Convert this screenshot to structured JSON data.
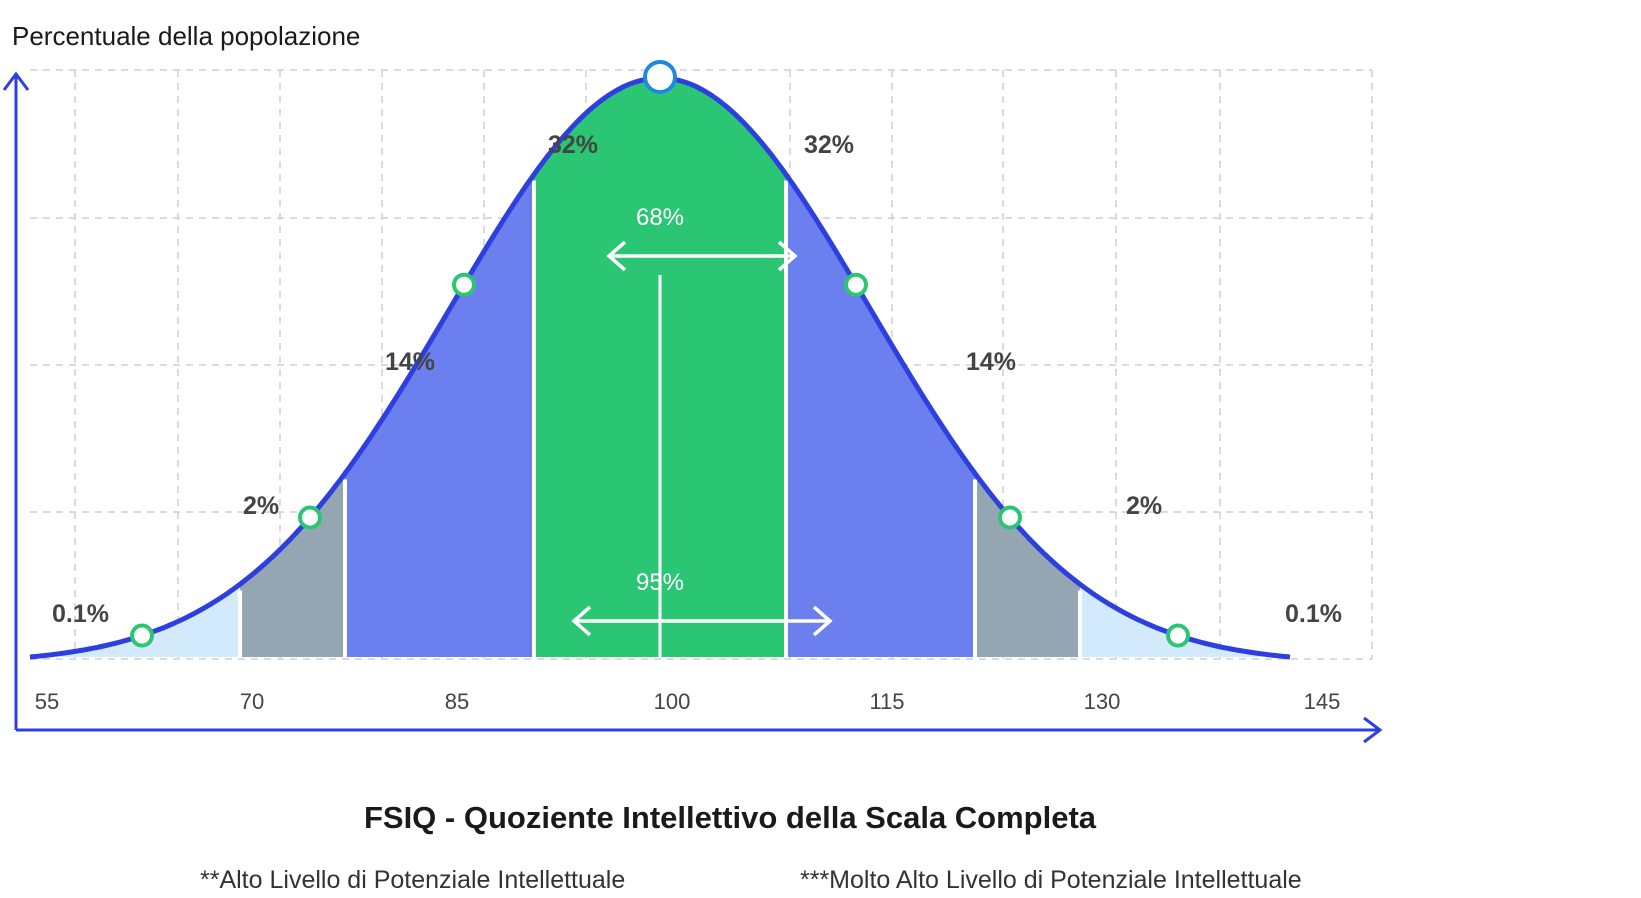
{
  "chart_data": {
    "type": "area",
    "title": "FSIQ - Quoziente Intellettivo della Scala Completa",
    "ylabel": "Percentuale della popolazione",
    "xlabel": "",
    "x_ticks": [
      "55",
      "70",
      "85",
      "100",
      "115",
      "130",
      "145"
    ],
    "xlim": [
      55,
      145
    ],
    "grid": true,
    "distribution": "normal",
    "mean": 100,
    "sd": 15,
    "bands": [
      {
        "range": [
          55,
          70
        ],
        "label": "0.1%",
        "color": "#d2eafb"
      },
      {
        "range": [
          70,
          77.5
        ],
        "label": "2%",
        "color": "#94a6b2"
      },
      {
        "range": [
          77.5,
          91
        ],
        "label": "14%",
        "color": "#6b80ee"
      },
      {
        "range": [
          91,
          109
        ],
        "label": "32%",
        "color": "#2ac673"
      },
      {
        "range": [
          109,
          122.5
        ],
        "label": "14%",
        "color": "#6b80ee"
      },
      {
        "range": [
          122.5,
          130
        ],
        "label": "2%",
        "color": "#94a6b2"
      },
      {
        "range": [
          130,
          145
        ],
        "label": "0.1%",
        "color": "#d2eafb"
      }
    ],
    "side_labels": {
      "left": [
        "0.1%",
        "2%",
        "14%",
        "32%"
      ],
      "right": [
        "32%",
        "14%",
        "2%",
        "0.1%"
      ]
    },
    "inner_labels": [
      "68%",
      "95%"
    ],
    "curve_color": "#2e3fe0",
    "marker_color": "#2ac673"
  },
  "notes": {
    "left": "**Alto Livello di Potenziale Intellettuale",
    "right": "***Molto Alto Livello di Potenziale Intellettuale"
  }
}
